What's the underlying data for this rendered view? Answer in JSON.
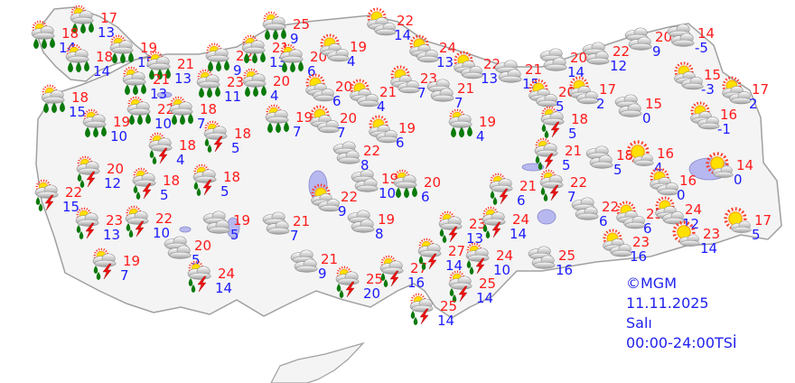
{
  "map": {
    "colors": {
      "land": "#f4f4f4",
      "border": "#a0a0a0",
      "water": "#b8b8f0",
      "max_temp": "#ff1a1a",
      "min_temp": "#1a1aff",
      "info_text": "#2222ee"
    },
    "stations": [
      {
        "icon": "rain",
        "max": "17",
        "min": "13"
      },
      {
        "icon": "rain",
        "max": "18",
        "min": "14"
      },
      {
        "icon": "rain",
        "max": "19",
        "min": "15"
      },
      {
        "icon": "rain",
        "max": "18",
        "min": "14"
      },
      {
        "icon": "rain",
        "max": "22",
        "min": "9"
      },
      {
        "icon": "rain",
        "max": "21",
        "min": "13"
      },
      {
        "icon": "rain",
        "max": "21",
        "min": "13"
      },
      {
        "icon": "rain",
        "max": "23",
        "min": "11"
      },
      {
        "icon": "rain",
        "max": "18",
        "min": "15"
      },
      {
        "icon": "rain",
        "max": "22",
        "min": "10"
      },
      {
        "icon": "rain",
        "max": "18",
        "min": "7"
      },
      {
        "icon": "rain",
        "max": "19",
        "min": "10"
      },
      {
        "icon": "thunderstorm",
        "max": "18",
        "min": "5"
      },
      {
        "icon": "thunderstorm",
        "max": "18",
        "min": "4"
      },
      {
        "icon": "thunderstorm",
        "max": "20",
        "min": "12"
      },
      {
        "icon": "thunderstorm",
        "max": "18",
        "min": "5"
      },
      {
        "icon": "thunderstorm",
        "max": "18",
        "min": "5"
      },
      {
        "icon": "thunderstorm",
        "max": "22",
        "min": "15"
      },
      {
        "icon": "thunderstorm",
        "max": "23",
        "min": "13"
      },
      {
        "icon": "thunderstorm",
        "max": "22",
        "min": "10"
      },
      {
        "icon": "cloudy",
        "max": "19",
        "min": "5"
      },
      {
        "icon": "cloudy",
        "max": "20",
        "min": "5"
      },
      {
        "icon": "thunderstorm",
        "max": "19",
        "min": "7"
      },
      {
        "icon": "thunderstorm",
        "max": "24",
        "min": "14"
      },
      {
        "icon": "rain",
        "max": "25",
        "min": "9"
      },
      {
        "icon": "partly-cloudy",
        "max": "22",
        "min": "14"
      },
      {
        "icon": "rain",
        "max": "21",
        "min": "13"
      },
      {
        "icon": "rain",
        "max": "20",
        "min": "6"
      },
      {
        "icon": "partly-cloudy",
        "max": "19",
        "min": "4"
      },
      {
        "icon": "partly-cloudy",
        "max": "24",
        "min": "13"
      },
      {
        "icon": "partly-cloudy",
        "max": "22",
        "min": "13"
      },
      {
        "icon": "cloudy",
        "max": "21",
        "min": "15"
      },
      {
        "icon": "rain",
        "max": "20",
        "min": "4"
      },
      {
        "icon": "partly-cloudy",
        "max": "20",
        "min": "6"
      },
      {
        "icon": "partly-cloudy",
        "max": "21",
        "min": "4"
      },
      {
        "icon": "partly-cloudy",
        "max": "23",
        "min": "7"
      },
      {
        "icon": "cloudy",
        "max": "21",
        "min": "7"
      },
      {
        "icon": "rain",
        "max": "19",
        "min": "7"
      },
      {
        "icon": "partly-cloudy",
        "max": "20",
        "min": "7"
      },
      {
        "icon": "partly-cloudy",
        "max": "19",
        "min": "6"
      },
      {
        "icon": "rain",
        "max": "19",
        "min": "4"
      },
      {
        "icon": "cloudy",
        "max": "22",
        "min": "8"
      },
      {
        "icon": "cloudy",
        "max": "19",
        "min": "10"
      },
      {
        "icon": "rain",
        "max": "20",
        "min": "6"
      },
      {
        "icon": "thunderstorm",
        "max": "21",
        "min": "6"
      },
      {
        "icon": "cloudy",
        "max": "20",
        "min": "9"
      },
      {
        "icon": "cloudy",
        "max": "14",
        "min": "-5"
      },
      {
        "icon": "cloudy",
        "max": "22",
        "min": "12"
      },
      {
        "icon": "cloudy",
        "max": "20",
        "min": "14"
      },
      {
        "icon": "partly-cloudy",
        "max": "15",
        "min": "-3"
      },
      {
        "icon": "partly-cloudy",
        "max": "20",
        "min": "5"
      },
      {
        "icon": "partly-cloudy",
        "max": "17",
        "min": "2"
      },
      {
        "icon": "partly-cloudy",
        "max": "17",
        "min": "2"
      },
      {
        "icon": "cloudy",
        "max": "15",
        "min": "0"
      },
      {
        "icon": "partly-cloudy",
        "max": "16",
        "min": "-1"
      },
      {
        "icon": "thunderstorm",
        "max": "18",
        "min": "5"
      },
      {
        "icon": "thunderstorm",
        "max": "21",
        "min": "5"
      },
      {
        "icon": "cloudy",
        "max": "18",
        "min": "5"
      },
      {
        "icon": "mostly-sunny",
        "max": "16",
        "min": "4"
      },
      {
        "icon": "mostly-sunny",
        "max": "14",
        "min": "0"
      },
      {
        "icon": "partly-cloudy",
        "max": "16",
        "min": "0"
      },
      {
        "icon": "thunderstorm",
        "max": "22",
        "min": "7"
      },
      {
        "icon": "cloudy",
        "max": "22",
        "min": "6"
      },
      {
        "icon": "partly-cloudy",
        "max": "25",
        "min": "6"
      },
      {
        "icon": "partly-cloudy",
        "max": "24",
        "min": "12"
      },
      {
        "icon": "mostly-sunny",
        "max": "17",
        "min": "5"
      },
      {
        "icon": "mostly-sunny",
        "max": "23",
        "min": "14"
      },
      {
        "icon": "partly-cloudy",
        "max": "23",
        "min": "16"
      },
      {
        "icon": "cloudy",
        "max": "25",
        "min": "16"
      },
      {
        "icon": "partly-cloudy",
        "max": "22",
        "min": "9"
      },
      {
        "icon": "cloudy",
        "max": "21",
        "min": "7"
      },
      {
        "icon": "cloudy",
        "max": "19",
        "min": "8"
      },
      {
        "icon": "cloudy",
        "max": "21",
        "min": "9"
      },
      {
        "icon": "thunderstorm",
        "max": "25",
        "min": "20"
      },
      {
        "icon": "thunderstorm",
        "max": "27",
        "min": "16"
      },
      {
        "icon": "thunderstorm",
        "max": "27",
        "min": "14"
      },
      {
        "icon": "thunderstorm",
        "max": "23",
        "min": "13"
      },
      {
        "icon": "thunderstorm",
        "max": "24",
        "min": "14"
      },
      {
        "icon": "thunderstorm",
        "max": "24",
        "min": "10"
      },
      {
        "icon": "thunderstorm",
        "max": "25",
        "min": "14"
      },
      {
        "icon": "thunderstorm",
        "max": "25",
        "min": "14"
      }
    ]
  },
  "info": {
    "copyright": "©MGM",
    "date": "11.11.2025",
    "day": "Salı",
    "period": "00:00-24:00TSİ"
  }
}
